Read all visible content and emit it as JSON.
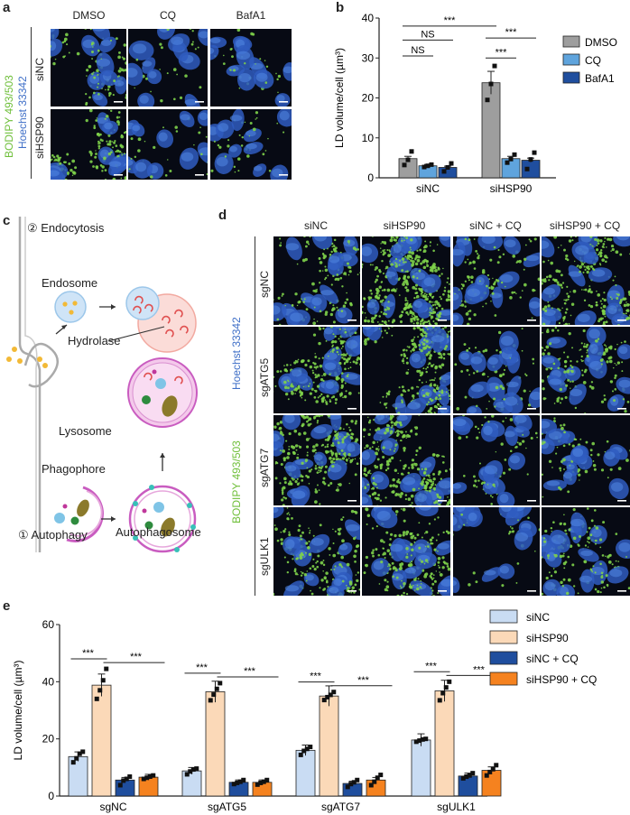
{
  "colors": {
    "bodipy": "#6fbf3a",
    "hoechst": "#3f6fc7",
    "dmso": "#9e9e9e",
    "cq_b": "#5fa4dd",
    "bafa1": "#1f4e9e",
    "sinc": "#c9dcf3",
    "sihsp90": "#fbd9b8",
    "sinc_cq": "#1f4e9e",
    "sihsp90_cq": "#f5821f"
  },
  "panel_a": {
    "letter": "a",
    "columns": [
      "DMSO",
      "CQ",
      "BafA1"
    ],
    "rows": [
      "siNC",
      "siHSP90"
    ],
    "stain_green": "BODIPY 493/503",
    "stain_blue": "Hoechst 33342"
  },
  "panel_b": {
    "letter": "b"
  },
  "panel_c": {
    "letter": "c",
    "endocytosis": "② Endocytosis",
    "endosome": "Endosome",
    "hydrolase": "Hydrolase",
    "lysosome": "Lysosome",
    "phagophore": "Phagophore",
    "autophagosome": "Autophagosome",
    "autophagy": "① Autophagy"
  },
  "panel_d": {
    "letter": "d",
    "columns": [
      "siNC",
      "siHSP90",
      "siNC + CQ",
      "siHSP90 + CQ"
    ],
    "rows": [
      "sgNC",
      "sgATG5",
      "sgATG7",
      "sgULK1"
    ],
    "stain_green": "BODIPY 493/503",
    "stain_blue": "Hoechst 33342"
  },
  "panel_e": {
    "letter": "e"
  },
  "chart_data": [
    {
      "type": "bar",
      "panel": "b",
      "categories": [
        "siNC",
        "siHSP90"
      ],
      "series": [
        {
          "name": "DMSO",
          "values": [
            4.8,
            23.8
          ],
          "points": [
            [
              3.2,
              4.5,
              6.6
            ],
            [
              19.5,
              23.5,
              28.0
            ]
          ]
        },
        {
          "name": "CQ",
          "values": [
            3.0,
            4.8
          ],
          "points": [
            [
              2.7,
              3.0,
              3.3
            ],
            [
              3.8,
              4.7,
              5.8
            ]
          ]
        },
        {
          "name": "BafA1",
          "values": [
            2.6,
            4.4
          ],
          "points": [
            [
              1.6,
              2.6,
              3.6
            ],
            [
              2.2,
              4.6,
              6.3
            ]
          ]
        }
      ],
      "ylabel": "LD volume/cell (µm³)",
      "ylim": [
        0,
        40
      ],
      "yticks": [
        0,
        10,
        20,
        30,
        40
      ],
      "legend": "right",
      "significance": [
        {
          "label": "***",
          "between": "siNC DMSO vs siHSP90 DMSO"
        },
        {
          "label": "NS",
          "between": "siNC DMSO vs siNC BafA1"
        },
        {
          "label": "NS",
          "between": "siNC DMSO vs siNC CQ"
        },
        {
          "label": "***",
          "between": "siHSP90 DMSO vs siHSP90 BafA1"
        },
        {
          "label": "***",
          "between": "siHSP90 DMSO vs siHSP90 CQ"
        }
      ]
    },
    {
      "type": "bar",
      "panel": "e",
      "categories": [
        "sgNC",
        "sgATG5",
        "sgATG7",
        "sgULK1"
      ],
      "series": [
        {
          "name": "siNC",
          "values": [
            13.8,
            8.8,
            16.0,
            19.6
          ],
          "points": [
            [
              11.8,
              13.2,
              14.8,
              15.5
            ],
            [
              7.6,
              8.6,
              9.3,
              9.6
            ],
            [
              14.4,
              15.8,
              16.5,
              17.2
            ],
            [
              19.0,
              19.4,
              19.8,
              20.0
            ]
          ]
        },
        {
          "name": "siHSP90",
          "values": [
            38.8,
            36.5,
            35.0,
            36.8
          ],
          "points": [
            [
              34.0,
              37.0,
              40.5,
              44.5
            ],
            [
              33.5,
              35.5,
              37.5,
              39.5
            ],
            [
              33.6,
              34.6,
              35.4,
              36.4
            ],
            [
              33.5,
              36.0,
              38.0,
              40.0
            ]
          ]
        },
        {
          "name": "siNC + CQ",
          "values": [
            5.6,
            4.8,
            4.4,
            7.0
          ],
          "points": [
            [
              3.8,
              5.4,
              6.0,
              6.8
            ],
            [
              4.2,
              4.6,
              5.0,
              5.6
            ],
            [
              3.2,
              4.2,
              4.8,
              5.6
            ],
            [
              6.2,
              6.8,
              7.2,
              8.0
            ]
          ]
        },
        {
          "name": "siHSP90 + CQ",
          "values": [
            6.6,
            4.8,
            5.6,
            9.0
          ],
          "points": [
            [
              6.0,
              6.4,
              6.8,
              7.2
            ],
            [
              4.0,
              4.6,
              5.0,
              5.6
            ],
            [
              3.8,
              5.0,
              6.4,
              7.4
            ],
            [
              7.2,
              8.4,
              9.4,
              10.8
            ]
          ]
        }
      ],
      "ylabel": "LD volume/cell (µm³)",
      "ylim": [
        0,
        60
      ],
      "yticks": [
        0,
        20,
        40,
        60
      ],
      "legend": "right",
      "significance": [
        {
          "label": "***",
          "group": "sgNC",
          "between": "siNC vs siHSP90"
        },
        {
          "label": "***",
          "group": "sgNC",
          "between": "siHSP90 vs siHSP90 + CQ"
        },
        {
          "label": "***",
          "group": "sgATG5",
          "between": "siNC vs siHSP90"
        },
        {
          "label": "***",
          "group": "sgATG5",
          "between": "siHSP90 vs siHSP90 + CQ"
        },
        {
          "label": "***",
          "group": "sgATG7",
          "between": "siNC vs siHSP90"
        },
        {
          "label": "***",
          "group": "sgATG7",
          "between": "siHSP90 vs siHSP90 + CQ"
        },
        {
          "label": "***",
          "group": "sgULK1",
          "between": "siNC vs siHSP90"
        },
        {
          "label": "***",
          "group": "sgULK1",
          "between": "siHSP90 vs siHSP90 + CQ"
        }
      ]
    }
  ]
}
